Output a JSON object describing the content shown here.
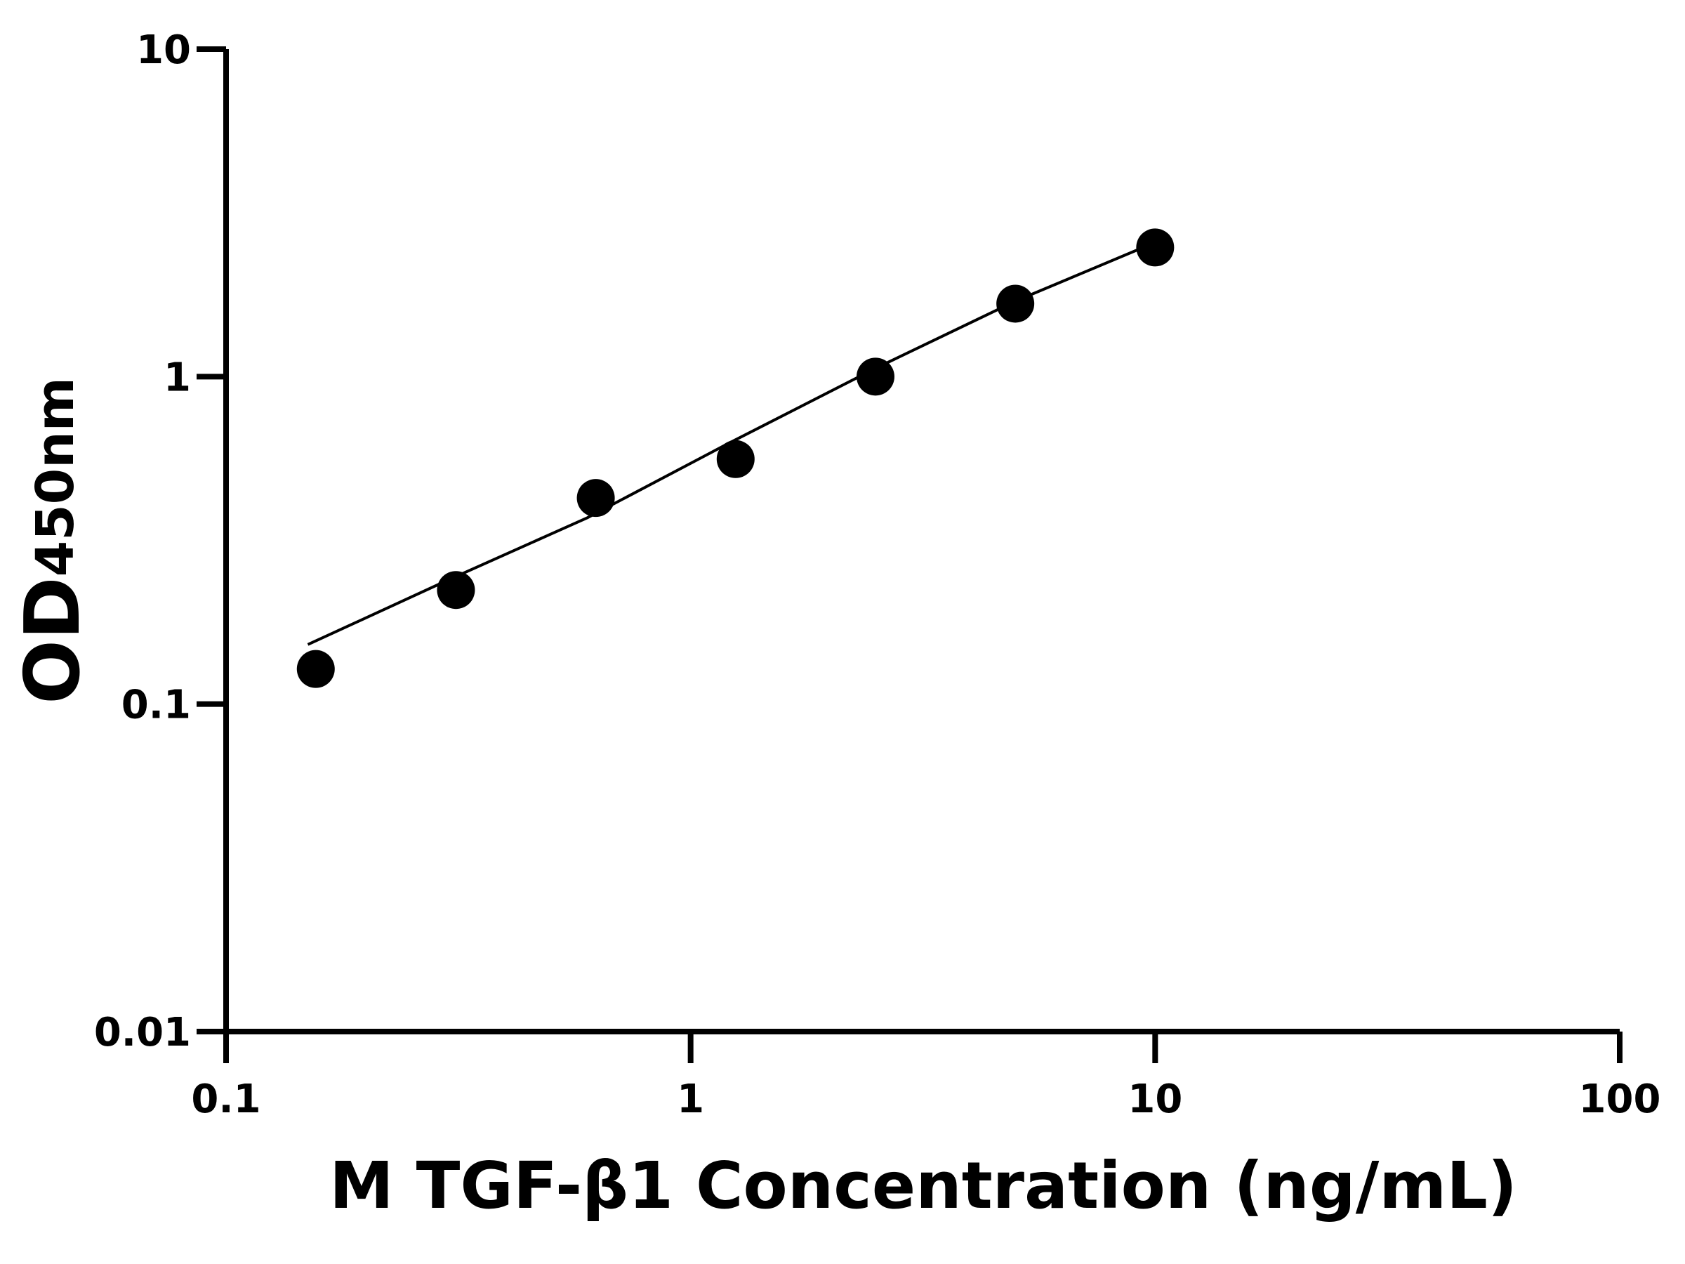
{
  "chart_data": {
    "type": "scatter",
    "xlabel": "M TGF-β1 Concentration (ng/mL)",
    "ylabel": "OD",
    "ylabel_subscript": "450nm",
    "xscale": "log",
    "yscale": "log",
    "xlim": [
      0.1,
      100
    ],
    "xticks": [
      0.1,
      1,
      10,
      100
    ],
    "ylim": [
      0.01,
      10
    ],
    "yticks": [
      0.01,
      0.1,
      1,
      10
    ],
    "color": "#000000",
    "x": [
      0.156,
      0.3125,
      0.625,
      1.25,
      2.5,
      5,
      10
    ],
    "values": [
      0.128,
      0.223,
      0.426,
      0.56,
      1.0,
      1.67,
      2.48
    ],
    "fit": {
      "x": [
        0.15,
        0.3,
        0.6,
        1.2,
        2.5,
        5,
        9.3
      ],
      "values": [
        0.152,
        0.239,
        0.371,
        0.623,
        1.06,
        1.7,
        2.46
      ]
    }
  }
}
